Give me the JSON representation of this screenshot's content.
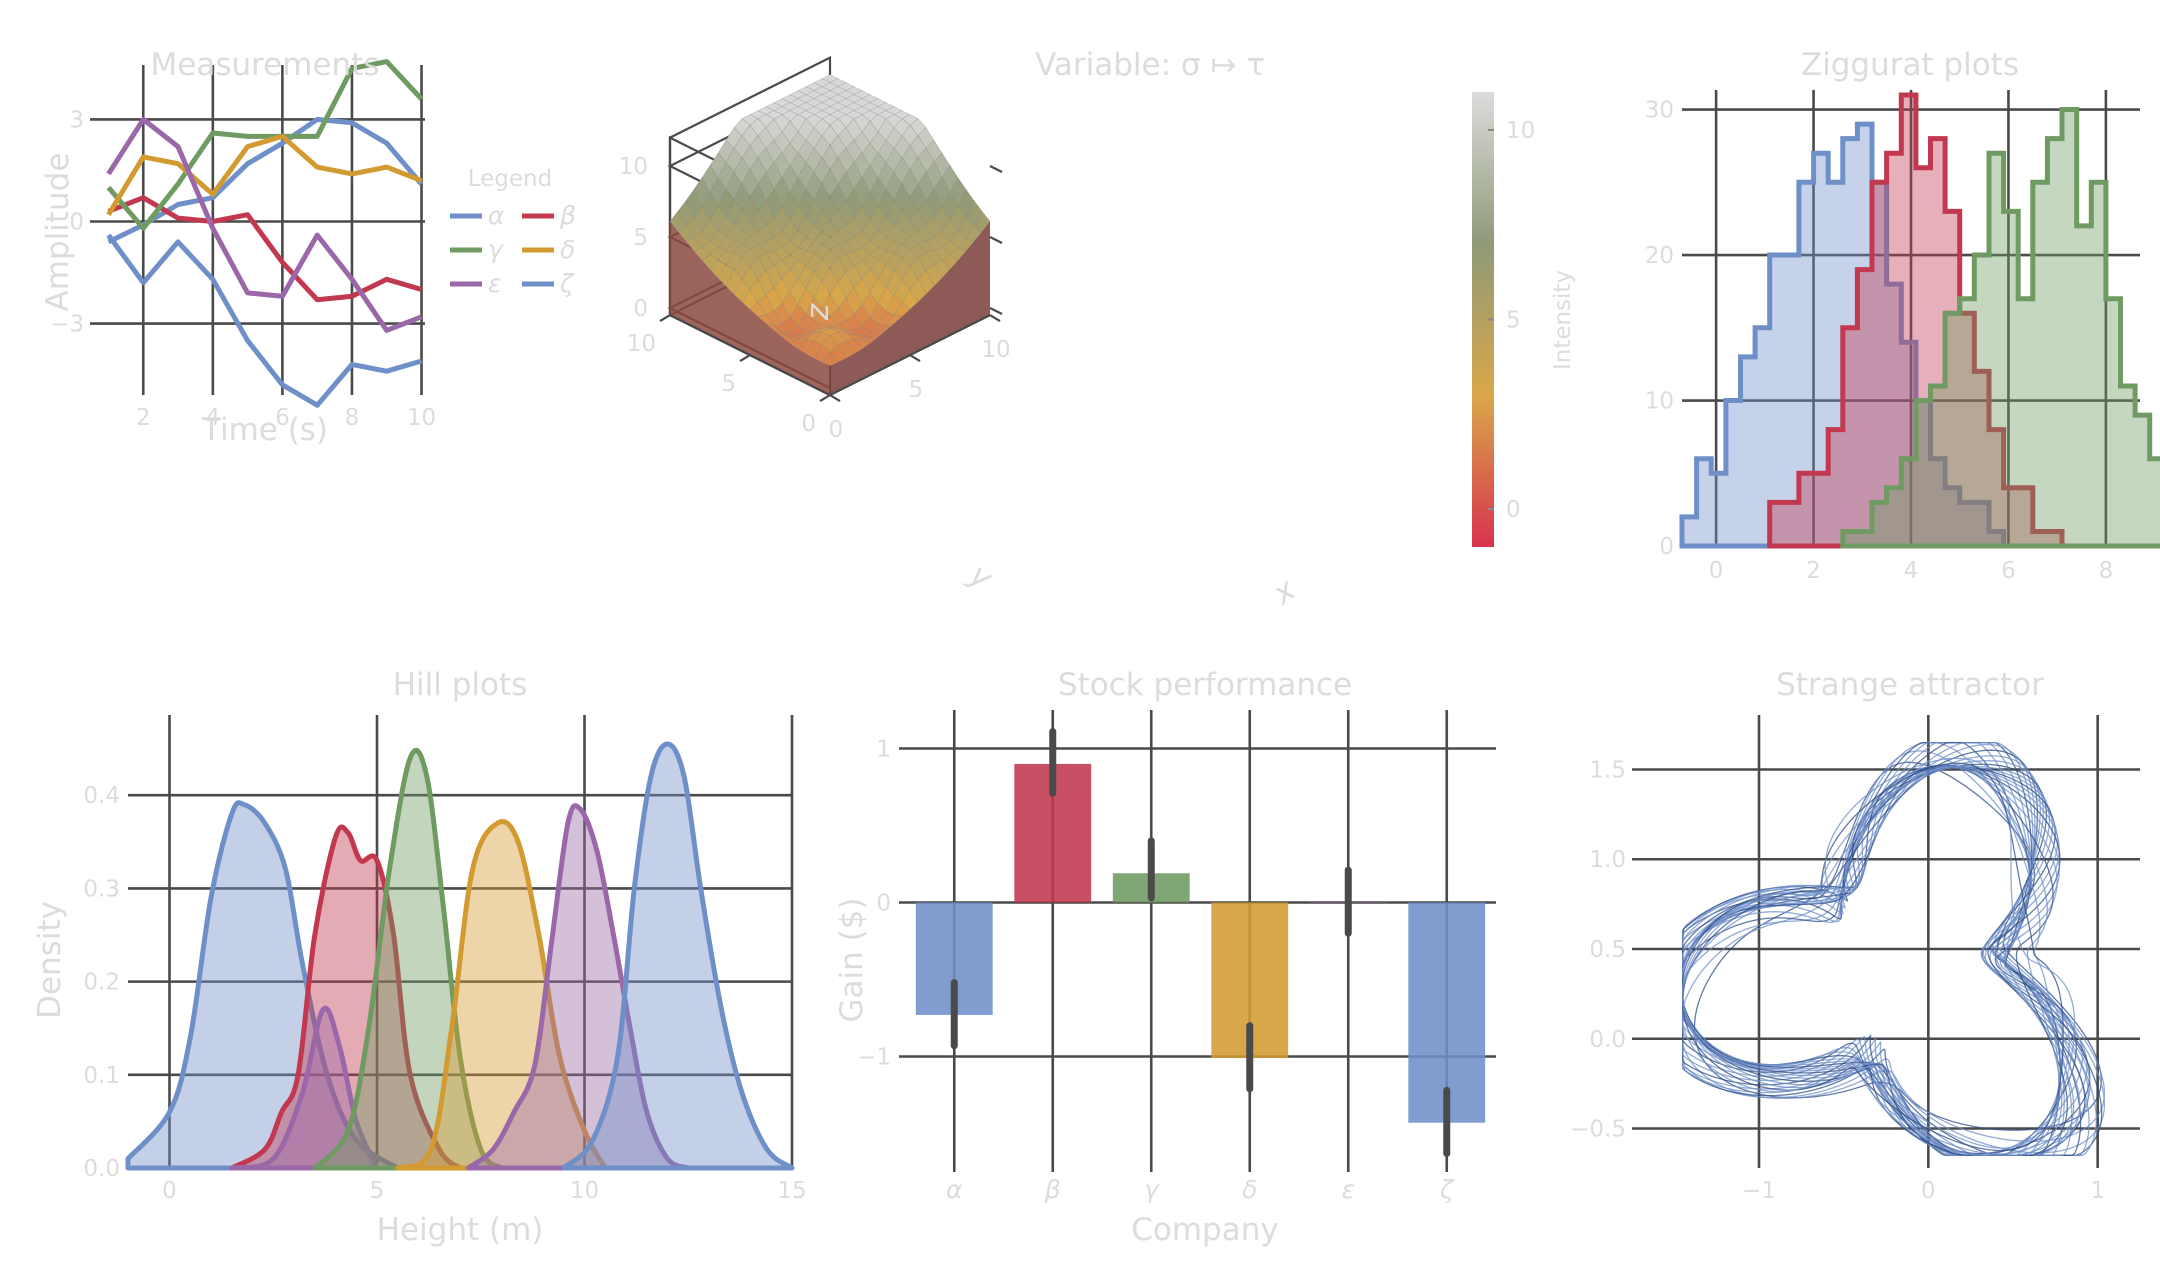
{
  "colors": {
    "blue": "#6f8fc8",
    "red": "#c2384f",
    "green": "#6f9a62",
    "gold": "#d39a32",
    "purple": "#9a68a8",
    "grid": "#4a4a4a",
    "text": "#dcdcdc"
  },
  "chart_data": [
    {
      "id": "measurements",
      "type": "line",
      "title": "Measurements",
      "xlabel": "Time (s)",
      "ylabel": "Amplitude",
      "xlim": [
        0.9,
        10.1
      ],
      "ylim": [
        -5.1,
        4.6
      ],
      "x_ticks": [
        2,
        4,
        6,
        8,
        10
      ],
      "y_ticks": [
        -3,
        0,
        3
      ],
      "y_tick_labels": [
        "−3",
        "0",
        "3"
      ],
      "legend_title": "Legend",
      "legend_position": "right",
      "x": [
        1,
        2,
        3,
        4,
        5,
        6,
        7,
        8,
        9,
        10
      ],
      "series": [
        {
          "name": "α",
          "color": "blue",
          "values": [
            -0.6,
            -0.1,
            0.5,
            0.7,
            1.7,
            2.3,
            3.0,
            2.9,
            2.3,
            1.1
          ]
        },
        {
          "name": "β",
          "color": "red",
          "values": [
            0.3,
            0.7,
            0.1,
            0.0,
            0.2,
            -1.2,
            -2.3,
            -2.2,
            -1.7,
            -2.0
          ]
        },
        {
          "name": "γ",
          "color": "green",
          "values": [
            1.0,
            -0.2,
            1.1,
            2.6,
            2.5,
            2.5,
            2.5,
            4.5,
            4.7,
            3.6
          ]
        },
        {
          "name": "δ",
          "color": "gold",
          "values": [
            0.2,
            1.9,
            1.7,
            0.8,
            2.2,
            2.5,
            1.6,
            1.4,
            1.6,
            1.2
          ]
        },
        {
          "name": "ε",
          "color": "purple",
          "values": [
            1.4,
            3.0,
            2.2,
            -0.2,
            -2.1,
            -2.2,
            -0.4,
            -1.7,
            -3.2,
            -2.8
          ]
        },
        {
          "name": "ζ",
          "color": "blue",
          "values": [
            -0.4,
            -1.8,
            -0.6,
            -1.7,
            -3.5,
            -4.8,
            -5.4,
            -4.2,
            -4.4,
            -4.1
          ]
        }
      ]
    },
    {
      "id": "surface",
      "type": "heatmap",
      "subtype": "3d-surface",
      "title": "Variable: σ ↦ τ",
      "xlabel": "x",
      "ylabel": "y",
      "zlabel": "z",
      "colorbar_label": "Intensity",
      "x_ticks": [
        0,
        5,
        10
      ],
      "y_ticks": [
        0,
        5,
        10
      ],
      "z_ticks": [
        0,
        5,
        10
      ],
      "colorbar_ticks": [
        0,
        5,
        10
      ],
      "zlim": [
        -1,
        11
      ],
      "colormap": [
        "#d8334e",
        "#d9a74a",
        "#8f9a78",
        "#dcdcdc"
      ]
    },
    {
      "id": "ziggurat",
      "type": "bar",
      "subtype": "step-histogram",
      "title": "Ziggurat plots",
      "xlim": [
        -0.7,
        8.7
      ],
      "ylim": [
        0,
        31
      ],
      "x_ticks": [
        0,
        2,
        4,
        6,
        8
      ],
      "y_ticks": [
        0,
        10,
        20,
        30
      ],
      "bin_width": 0.3,
      "series": [
        {
          "color": "blue",
          "start": -0.7,
          "values": [
            2,
            6,
            5,
            10,
            13,
            15,
            20,
            20,
            25,
            27,
            25,
            28,
            29,
            25,
            18,
            14,
            10,
            6,
            4,
            3,
            3,
            1,
            0
          ]
        },
        {
          "color": "red",
          "start": 1.1,
          "values": [
            3,
            3,
            5,
            5,
            8,
            15,
            19,
            25,
            27,
            31,
            26,
            28,
            23,
            16,
            12,
            8,
            4,
            4,
            1,
            1
          ]
        },
        {
          "color": "green",
          "start": 2.6,
          "values": [
            1,
            1,
            3,
            4,
            6,
            10,
            11,
            16,
            17,
            20,
            27,
            23,
            17,
            25,
            28,
            30,
            22,
            25,
            17,
            11,
            9,
            6,
            4,
            4
          ]
        }
      ]
    },
    {
      "id": "hills",
      "type": "area",
      "title": "Hill plots",
      "xlabel": "Height (m)",
      "ylabel": "Density",
      "xlim": [
        -1,
        15
      ],
      "ylim": [
        0,
        0.47
      ],
      "x_ticks": [
        0,
        5,
        10,
        15
      ],
      "y_ticks": [
        0.0,
        0.1,
        0.2,
        0.3,
        0.4
      ],
      "y_tick_labels": [
        "0.0",
        "0.1",
        "0.2",
        "0.3",
        "0.4"
      ],
      "series": [
        {
          "color": "blue",
          "points": [
            [
              -1,
              0.01
            ],
            [
              0,
              0.06
            ],
            [
              0.5,
              0.14
            ],
            [
              1,
              0.29
            ],
            [
              1.5,
              0.38
            ],
            [
              1.8,
              0.39
            ],
            [
              2.3,
              0.37
            ],
            [
              2.8,
              0.32
            ],
            [
              3.2,
              0.22
            ],
            [
              3.8,
              0.1
            ],
            [
              4.5,
              0.03
            ],
            [
              5.5,
              0.0
            ]
          ]
        },
        {
          "color": "red",
          "points": [
            [
              1.5,
              0.0
            ],
            [
              2.3,
              0.02
            ],
            [
              2.7,
              0.06
            ],
            [
              3.1,
              0.1
            ],
            [
              3.5,
              0.25
            ],
            [
              4,
              0.355
            ],
            [
              4.3,
              0.36
            ],
            [
              4.6,
              0.33
            ],
            [
              5,
              0.33
            ],
            [
              5.4,
              0.25
            ],
            [
              5.8,
              0.1
            ],
            [
              6.5,
              0.02
            ],
            [
              7,
              0.0
            ]
          ]
        },
        {
          "color": "purple",
          "points": [
            [
              1.5,
              0.0
            ],
            [
              2.5,
              0.01
            ],
            [
              3.2,
              0.08
            ],
            [
              3.7,
              0.17
            ],
            [
              4.1,
              0.13
            ],
            [
              4.5,
              0.05
            ],
            [
              5,
              0.0
            ]
          ]
        },
        {
          "color": "green",
          "points": [
            [
              3.5,
              0.0
            ],
            [
              4.3,
              0.04
            ],
            [
              4.8,
              0.15
            ],
            [
              5.3,
              0.32
            ],
            [
              5.8,
              0.44
            ],
            [
              6.2,
              0.42
            ],
            [
              6.6,
              0.28
            ],
            [
              7,
              0.12
            ],
            [
              7.5,
              0.02
            ],
            [
              8,
              0.0
            ]
          ]
        },
        {
          "color": "gold",
          "points": [
            [
              5.5,
              0.0
            ],
            [
              6.3,
              0.02
            ],
            [
              6.8,
              0.15
            ],
            [
              7.3,
              0.32
            ],
            [
              7.9,
              0.37
            ],
            [
              8.4,
              0.35
            ],
            [
              8.9,
              0.25
            ],
            [
              9.4,
              0.12
            ],
            [
              10,
              0.04
            ],
            [
              10.5,
              0.0
            ]
          ]
        },
        {
          "color": "purple",
          "points": [
            [
              7.2,
              0.0
            ],
            [
              7.8,
              0.02
            ],
            [
              8.3,
              0.06
            ],
            [
              8.8,
              0.11
            ],
            [
              9.2,
              0.24
            ],
            [
              9.6,
              0.37
            ],
            [
              9.9,
              0.385
            ],
            [
              10.3,
              0.34
            ],
            [
              10.7,
              0.25
            ],
            [
              11.1,
              0.15
            ],
            [
              11.5,
              0.06
            ],
            [
              12,
              0.01
            ],
            [
              12.5,
              0.0
            ]
          ]
        },
        {
          "color": "blue",
          "points": [
            [
              9.5,
              0.0
            ],
            [
              10.2,
              0.03
            ],
            [
              10.8,
              0.12
            ],
            [
              11.2,
              0.3
            ],
            [
              11.6,
              0.42
            ],
            [
              12,
              0.455
            ],
            [
              12.4,
              0.42
            ],
            [
              12.8,
              0.3
            ],
            [
              13.3,
              0.17
            ],
            [
              13.8,
              0.08
            ],
            [
              14.4,
              0.02
            ],
            [
              15,
              0.0
            ]
          ]
        }
      ]
    },
    {
      "id": "stocks",
      "type": "bar",
      "title": "Stock performance",
      "xlabel": "Company",
      "ylabel": "Gain ($)",
      "ylim": [
        -1.75,
        1.25
      ],
      "y_ticks": [
        -1,
        0,
        1
      ],
      "y_tick_labels": [
        "−1",
        "0",
        "1"
      ],
      "categories": [
        "α",
        "β",
        "γ",
        "δ",
        "ε",
        "ζ"
      ],
      "values": [
        -0.73,
        0.9,
        0.19,
        -1.01,
        0.0,
        -1.43
      ],
      "err_low": [
        -0.93,
        0.71,
        0.03,
        -1.21,
        -0.2,
        -1.63
      ],
      "err_high": [
        -0.52,
        1.11,
        0.4,
        -0.8,
        0.21,
        -1.22
      ],
      "bar_colors": [
        "blue",
        "red",
        "green",
        "gold",
        "purple",
        "blue"
      ]
    },
    {
      "id": "attractor",
      "type": "scatter",
      "title": "Strange attractor",
      "xlim": [
        -1.75,
        1.25
      ],
      "ylim": [
        -0.72,
        1.72
      ],
      "x_ticks": [
        -1,
        0,
        1
      ],
      "x_tick_labels": [
        "−1",
        "0",
        "1"
      ],
      "y_ticks": [
        -0.5,
        0.0,
        0.5,
        1.0,
        1.5
      ],
      "y_tick_labels": [
        "−0.5",
        "0.0",
        "0.5",
        "1.0",
        "1.5"
      ]
    }
  ]
}
